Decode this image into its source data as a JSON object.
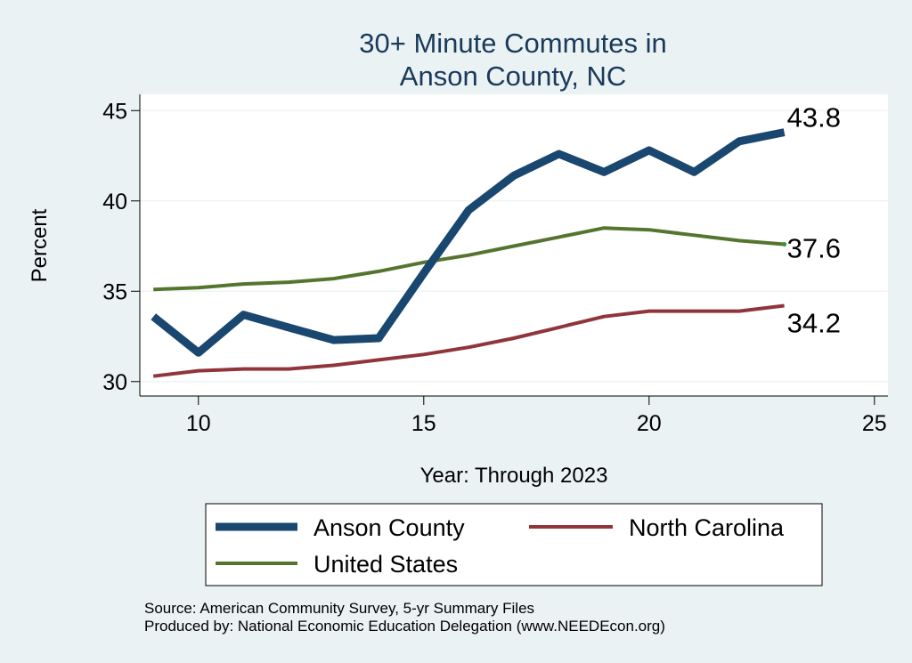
{
  "chart_data": {
    "type": "line",
    "title_lines": [
      "30+ Minute Commutes in",
      "Anson County, NC"
    ],
    "xlabel": "Year: Through 2023",
    "ylabel": "Percent",
    "xlim": [
      8.7,
      25.3
    ],
    "ylim": [
      29.2,
      45.9
    ],
    "xticks": [
      10,
      15,
      20,
      25
    ],
    "yticks": [
      30,
      35,
      40,
      45
    ],
    "grid": true,
    "series": [
      {
        "name": "Anson County",
        "color": "#1a476f",
        "x": [
          9,
          10,
          11,
          12,
          13,
          14,
          15,
          16,
          17,
          18,
          19,
          20,
          21,
          22,
          23
        ],
        "values": [
          33.6,
          31.6,
          33.7,
          33.0,
          32.3,
          32.4,
          36.0,
          39.5,
          41.4,
          42.6,
          41.6,
          42.8,
          41.6,
          43.3,
          43.8
        ],
        "end_label": "43.8"
      },
      {
        "name": "North Carolina",
        "color": "#90353b",
        "x": [
          9,
          10,
          11,
          12,
          13,
          14,
          15,
          16,
          17,
          18,
          19,
          20,
          21,
          22,
          23
        ],
        "values": [
          30.3,
          30.6,
          30.7,
          30.7,
          30.9,
          31.2,
          31.5,
          31.9,
          32.4,
          33.0,
          33.6,
          33.9,
          33.9,
          33.9,
          34.2
        ],
        "end_label": "34.2"
      },
      {
        "name": "United States",
        "color": "#55752f",
        "x": [
          9,
          10,
          11,
          12,
          13,
          14,
          15,
          16,
          17,
          18,
          19,
          20,
          21,
          22,
          23
        ],
        "values": [
          35.1,
          35.2,
          35.4,
          35.5,
          35.7,
          36.1,
          36.6,
          37.0,
          37.5,
          38.0,
          38.5,
          38.4,
          38.1,
          37.8,
          37.6
        ],
        "end_label": "37.6"
      }
    ],
    "legend": {
      "position": "bottom",
      "items": [
        "Anson County",
        "North Carolina",
        "United States"
      ]
    },
    "notes": [
      "Source: American Community Survey, 5-yr Summary Files",
      "Produced by: National Economic Education Delegation (www.NEEDEcon.org)"
    ]
  }
}
